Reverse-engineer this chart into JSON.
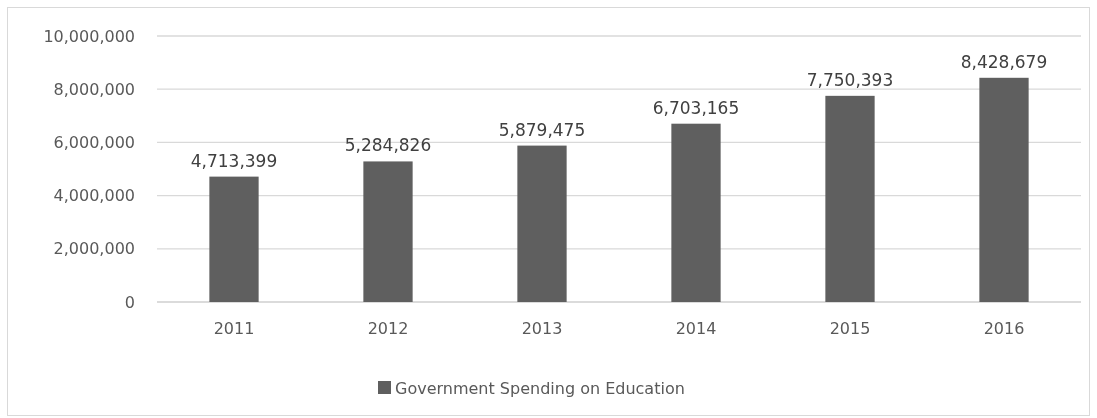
{
  "chart_data": {
    "type": "bar",
    "categories": [
      "2011",
      "2012",
      "2013",
      "2014",
      "2015",
      "2016"
    ],
    "series": [
      {
        "name": "Government Spending on Education",
        "color": "#5f5f5f",
        "values": [
          4713399,
          5284826,
          5879475,
          6703165,
          7750393,
          8428679
        ],
        "value_labels": [
          "4,713,399",
          "5,284,826",
          "5,879,475",
          "6,703,165",
          "7,750,393",
          "8,428,679"
        ]
      }
    ],
    "ylim": [
      0,
      10000000
    ],
    "yticks": [
      {
        "value": 0,
        "label": "0"
      },
      {
        "value": 2000000,
        "label": "2,000,000"
      },
      {
        "value": 4000000,
        "label": "4,000,000"
      },
      {
        "value": 6000000,
        "label": "6,000,000"
      },
      {
        "value": 8000000,
        "label": "8,000,000"
      },
      {
        "value": 10000000,
        "label": "10,000,000"
      }
    ],
    "grid": "y",
    "legend": "bottom"
  }
}
